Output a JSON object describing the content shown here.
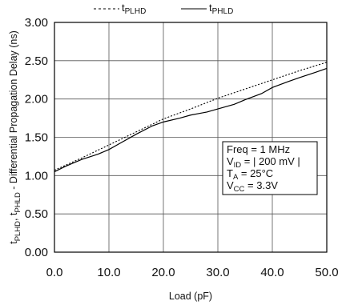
{
  "chart_data": {
    "type": "line",
    "title": "",
    "xlabel": "Load (pF)",
    "ylabel": {
      "prefix_main": "t",
      "prefix_sub": "PLHD",
      "sep": ", ",
      "mid_main": "t",
      "mid_sub": "PHLD",
      "rest": " - Differential Propagation Delay (ns)"
    },
    "xlim": [
      0,
      50
    ],
    "ylim": [
      0,
      3
    ],
    "x_ticks": [
      "0.0",
      "10.0",
      "20.0",
      "30.0",
      "40.0",
      "50.0"
    ],
    "y_ticks": [
      "0.00",
      "0.50",
      "1.00",
      "1.50",
      "2.00",
      "2.50",
      "3.00"
    ],
    "grid": true,
    "legend_position": "top-center",
    "series": [
      {
        "name": "t_PLHD",
        "label_main": "t",
        "label_sub": "PLHD",
        "style": "dotted",
        "x": [
          0,
          5,
          10,
          15,
          20,
          25,
          30,
          35,
          40,
          45,
          50
        ],
        "values": [
          1.07,
          1.23,
          1.4,
          1.57,
          1.74,
          1.87,
          2.01,
          2.13,
          2.25,
          2.37,
          2.48
        ]
      },
      {
        "name": "t_PHLD",
        "label_main": "t",
        "label_sub": "PHLD",
        "style": "solid",
        "x": [
          0,
          2,
          5,
          8,
          10,
          12,
          15,
          18,
          20,
          23,
          25,
          28,
          30,
          33,
          35,
          38,
          40,
          43,
          45,
          48,
          50
        ],
        "values": [
          1.05,
          1.12,
          1.21,
          1.28,
          1.34,
          1.42,
          1.54,
          1.65,
          1.7,
          1.75,
          1.79,
          1.83,
          1.87,
          1.93,
          1.99,
          2.07,
          2.15,
          2.23,
          2.28,
          2.35,
          2.4
        ]
      }
    ],
    "annotation": {
      "lines": [
        {
          "main": "Freq = 1 MHz",
          "sub": "",
          "tail": ""
        },
        {
          "main": "V",
          "sub": "ID",
          "tail": "  = | 200 mV |"
        },
        {
          "main": "T",
          "sub": "A",
          "tail": "   = 25°C"
        },
        {
          "main": "V",
          "sub": "CC",
          "tail": " = 3.3V"
        }
      ]
    },
    "colors": {
      "line": "#000000",
      "grid": "#555555",
      "axis": "#000000"
    }
  }
}
